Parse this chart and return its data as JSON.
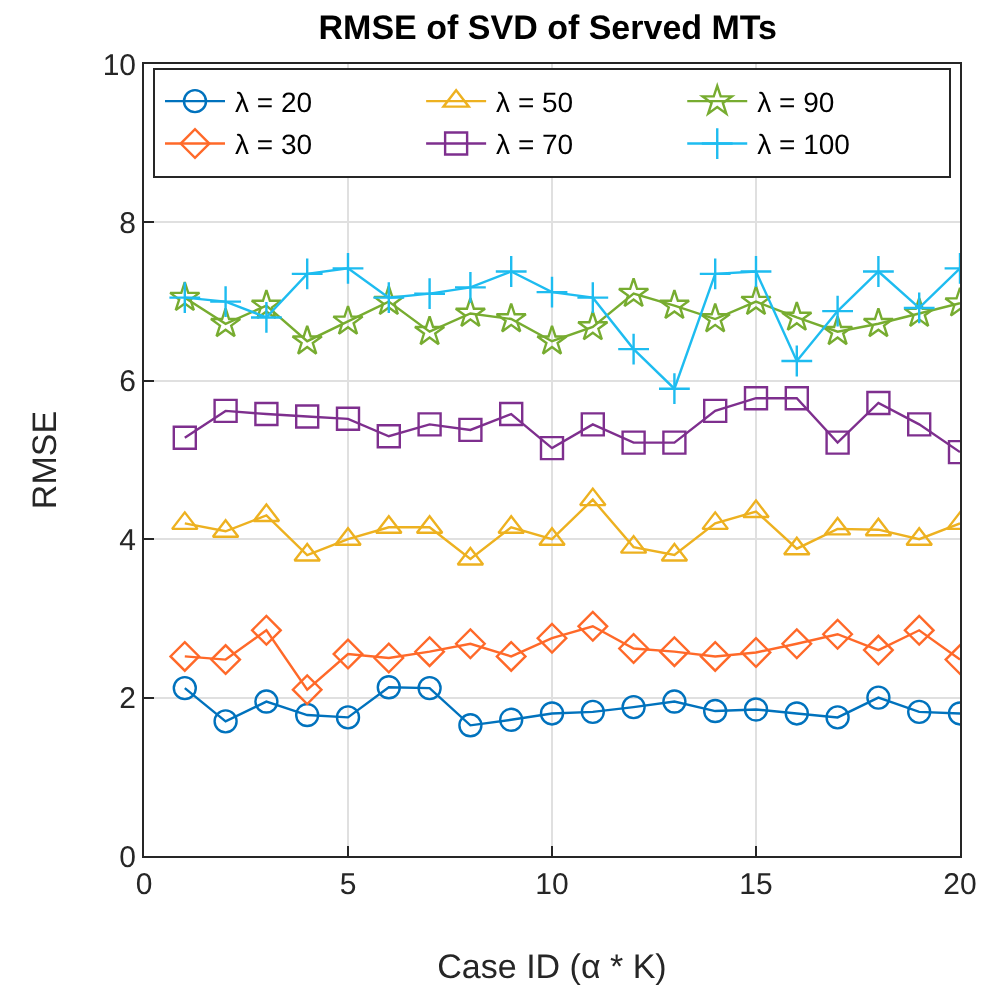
{
  "chart_data": {
    "type": "line",
    "title": "RMSE of SVD of Served MTs",
    "xlabel": "Case ID (α * K)",
    "ylabel": "RMSE",
    "x": [
      1,
      2,
      3,
      4,
      5,
      6,
      7,
      8,
      9,
      10,
      11,
      12,
      13,
      14,
      15,
      16,
      17,
      18,
      19,
      20
    ],
    "xlim": [
      0,
      20
    ],
    "xticks": [
      0,
      5,
      10,
      15,
      20
    ],
    "ylim": [
      0,
      10
    ],
    "yticks": [
      0,
      2,
      4,
      6,
      8,
      10
    ],
    "grid": true,
    "legend": "top",
    "line_style": "solid",
    "series": [
      {
        "name": "λ = 20",
        "color": "#0072bd",
        "marker": "circle",
        "values": [
          2.12,
          1.7,
          1.95,
          1.78,
          1.75,
          2.13,
          2.12,
          1.65,
          1.72,
          1.8,
          1.82,
          1.88,
          1.95,
          1.83,
          1.85,
          1.8,
          1.75,
          2.0,
          1.82,
          1.8
        ]
      },
      {
        "name": "λ = 50",
        "color": "#edb120",
        "marker": "triangle",
        "values": [
          4.2,
          4.1,
          4.3,
          3.8,
          4.0,
          4.15,
          4.15,
          3.75,
          4.15,
          4.0,
          4.5,
          3.9,
          3.8,
          4.2,
          4.35,
          3.88,
          4.13,
          4.12,
          4.0,
          4.2
        ]
      },
      {
        "name": "λ = 90",
        "color": "#77ac30",
        "marker": "star",
        "values": [
          7.05,
          6.72,
          6.95,
          6.5,
          6.75,
          7.0,
          6.62,
          6.85,
          6.78,
          6.5,
          6.68,
          7.1,
          6.95,
          6.78,
          7.0,
          6.8,
          6.62,
          6.72,
          6.85,
          6.98
        ]
      },
      {
        "name": "λ = 30",
        "color": "#ff6929",
        "marker": "diamond",
        "values": [
          2.52,
          2.48,
          2.85,
          2.1,
          2.55,
          2.5,
          2.58,
          2.68,
          2.52,
          2.75,
          2.9,
          2.62,
          2.58,
          2.52,
          2.57,
          2.68,
          2.8,
          2.6,
          2.85,
          2.48
        ]
      },
      {
        "name": "λ = 70",
        "color": "#7e2f8e",
        "marker": "square",
        "values": [
          5.28,
          5.62,
          5.58,
          5.55,
          5.52,
          5.3,
          5.45,
          5.38,
          5.58,
          5.15,
          5.45,
          5.22,
          5.22,
          5.62,
          5.78,
          5.78,
          5.22,
          5.72,
          5.45,
          5.1
        ]
      },
      {
        "name": "λ = 100",
        "color": "#1ebcf0",
        "marker": "cross",
        "values": [
          7.05,
          7.0,
          6.8,
          7.35,
          7.42,
          7.05,
          7.1,
          7.18,
          7.38,
          7.12,
          7.05,
          6.4,
          5.9,
          7.35,
          7.38,
          6.25,
          6.88,
          7.38,
          6.92,
          7.42
        ]
      }
    ]
  }
}
